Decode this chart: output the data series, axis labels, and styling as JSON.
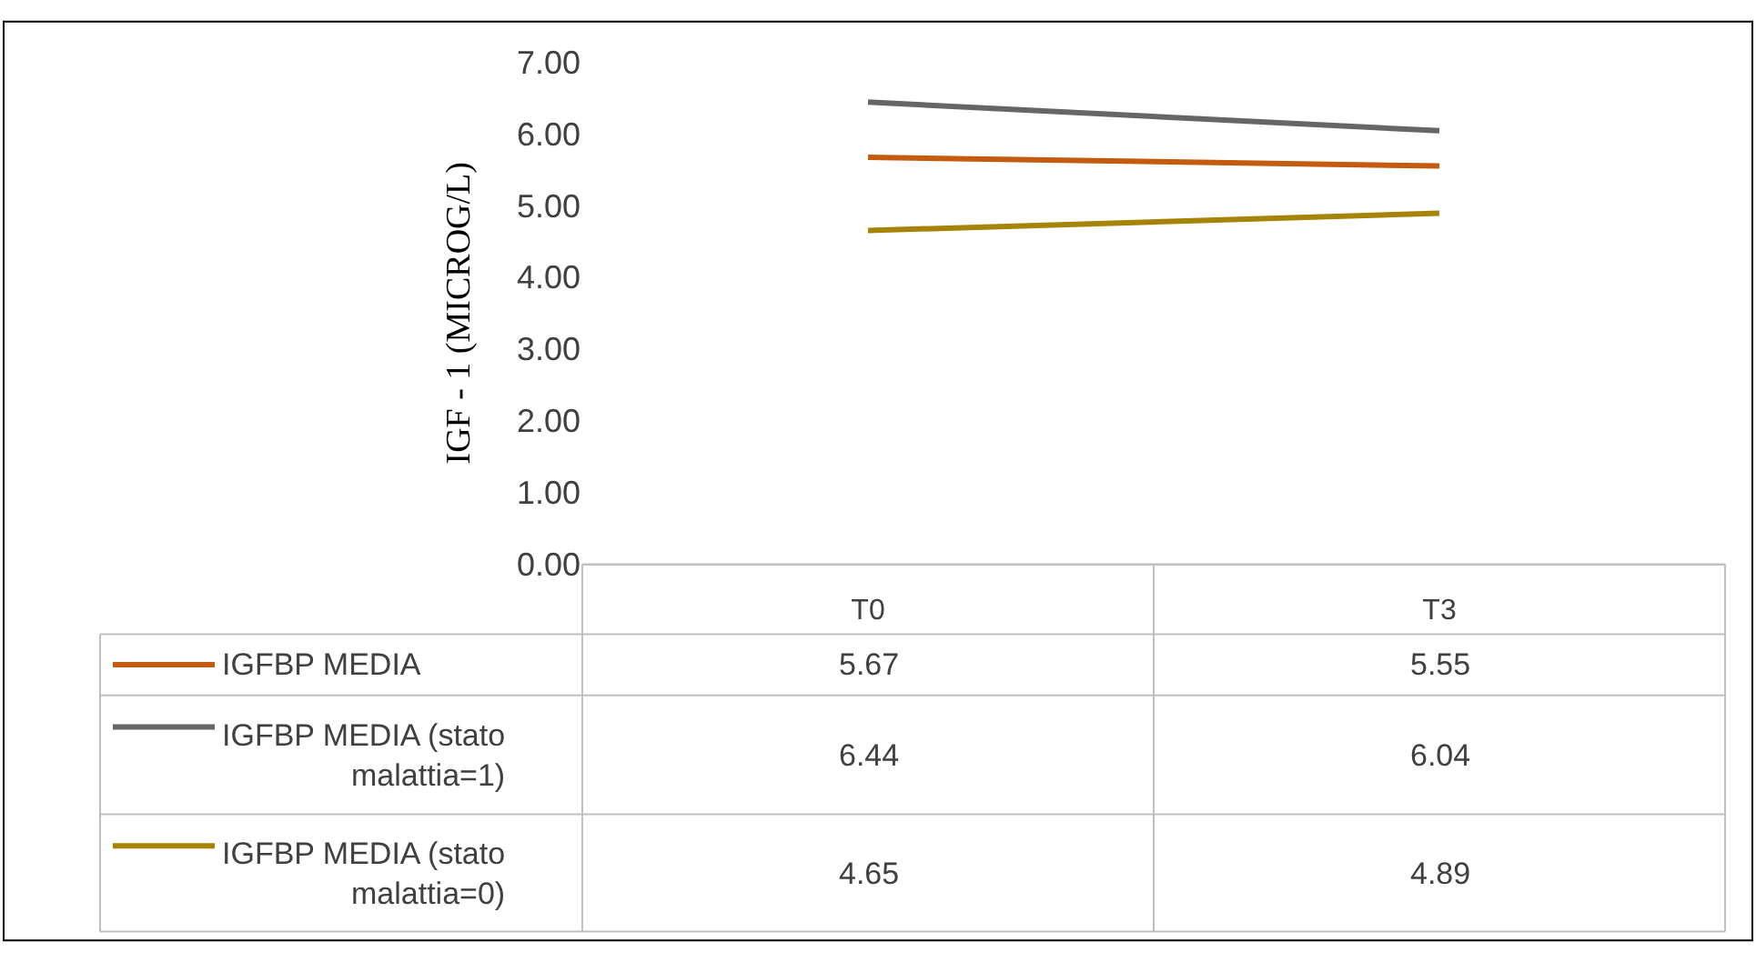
{
  "chart_data": {
    "type": "line",
    "ylabel": "IGF - 1 (MICROG/L)",
    "categories": [
      "T0",
      "T3"
    ],
    "series": [
      {
        "name": "IGFBP MEDIA",
        "color": "#c55a11",
        "values": [
          5.67,
          5.55
        ]
      },
      {
        "name": "IGFBP MEDIA (stato malattia=1)",
        "color": "#666666",
        "values": [
          6.44,
          6.04
        ]
      },
      {
        "name": "IGFBP MEDIA (stato malattia=0)",
        "color": "#a58407",
        "values": [
          4.65,
          4.89
        ]
      }
    ],
    "ylim": [
      0,
      7
    ],
    "yticks": [
      {
        "value": 0,
        "label": "0.00"
      },
      {
        "value": 1,
        "label": "1.00"
      },
      {
        "value": 2,
        "label": "2.00"
      },
      {
        "value": 3,
        "label": "3.00"
      },
      {
        "value": 4,
        "label": "4.00"
      },
      {
        "value": 5,
        "label": "5.00"
      },
      {
        "value": 6,
        "label": "6.00"
      },
      {
        "value": 7,
        "label": "7.00"
      }
    ],
    "data_labels": true,
    "legend": "bottom left",
    "marker": "none",
    "line_style": "solid"
  }
}
